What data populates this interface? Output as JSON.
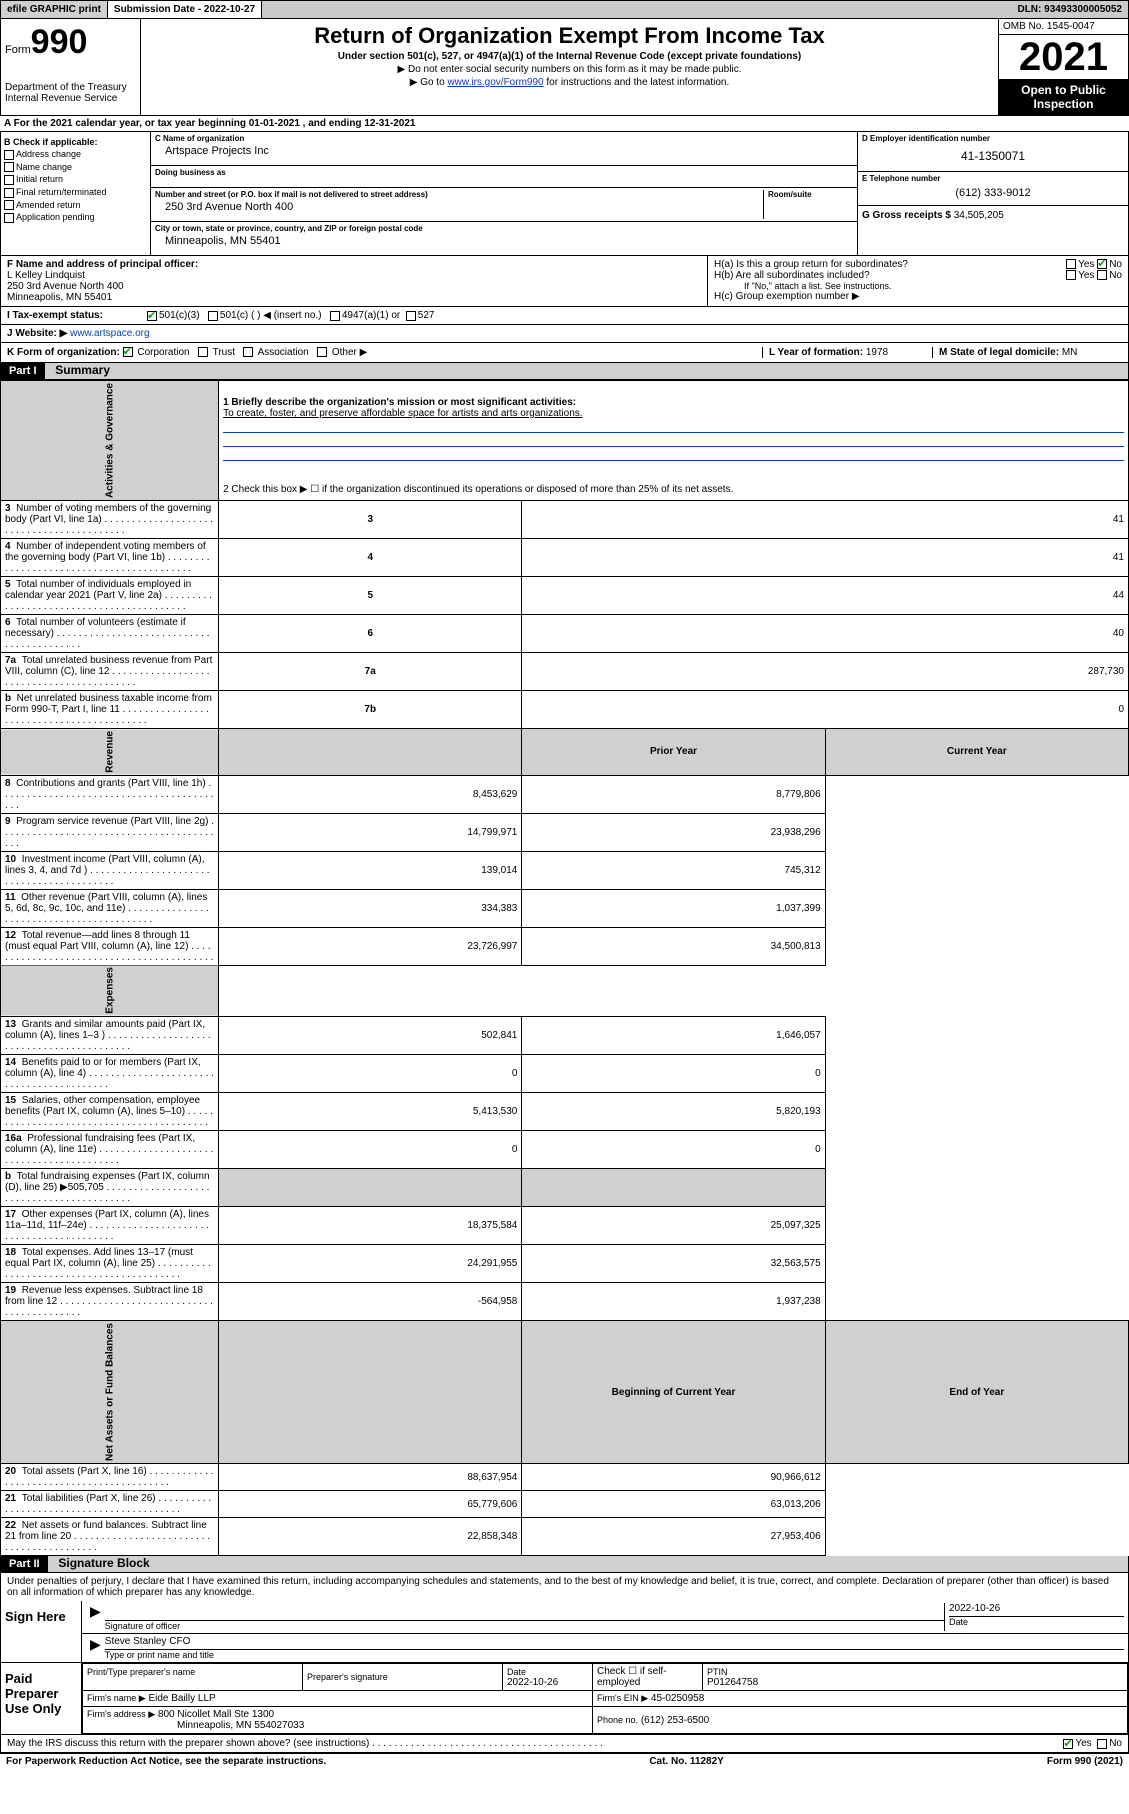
{
  "topbar": {
    "efile": "efile GRAPHIC print",
    "submission_label": "Submission Date - 2022-10-27",
    "dln": "DLN: 93493300005052"
  },
  "header": {
    "form_word": "Form",
    "form_num": "990",
    "dept1": "Department of the Treasury",
    "dept2": "Internal Revenue Service",
    "title": "Return of Organization Exempt From Income Tax",
    "sub": "Under section 501(c), 527, or 4947(a)(1) of the Internal Revenue Code (except private foundations)",
    "instr1": "▶ Do not enter social security numbers on this form as it may be made public.",
    "instr2_pre": "▶ Go to ",
    "instr2_link": "www.irs.gov/Form990",
    "instr2_post": " for instructions and the latest information.",
    "omb": "OMB No. 1545-0047",
    "year": "2021",
    "open": "Open to Public Inspection"
  },
  "A": {
    "text": "A For the 2021 calendar year, or tax year beginning 01-01-2021  , and ending 12-31-2021"
  },
  "B": {
    "label": "B Check if applicable:",
    "opts": [
      "Address change",
      "Name change",
      "Initial return",
      "Final return/terminated",
      "Amended return",
      "Application pending"
    ]
  },
  "C": {
    "name_label": "C Name of organization",
    "name": "Artspace Projects Inc",
    "dba_label": "Doing business as",
    "dba": "",
    "addr_label": "Number and street (or P.O. box if mail is not delivered to street address)",
    "room_label": "Room/suite",
    "addr": "250 3rd Avenue North 400",
    "city_label": "City or town, state or province, country, and ZIP or foreign postal code",
    "city": "Minneapolis, MN  55401"
  },
  "D": {
    "label": "D Employer identification number",
    "val": "41-1350071"
  },
  "E": {
    "label": "E Telephone number",
    "val": "(612) 333-9012"
  },
  "G": {
    "label": "G Gross receipts $",
    "val": "34,505,205"
  },
  "F": {
    "label": "F  Name and address of principal officer:",
    "name": "L Kelley Lindquist",
    "addr1": "250 3rd Avenue North 400",
    "addr2": "Minneapolis, MN  55401"
  },
  "H": {
    "a": "H(a)  Is this a group return for subordinates?",
    "a_yes": "Yes",
    "a_no": "No",
    "b": "H(b)  Are all subordinates included?",
    "b_yes": "Yes",
    "b_no": "No",
    "b_note": "If \"No,\" attach a list. See instructions.",
    "c": "H(c)  Group exemption number ▶"
  },
  "I": {
    "label": "I   Tax-exempt status:",
    "c3": "501(c)(3)",
    "c": "501(c) (   ) ◀ (insert no.)",
    "a4947": "4947(a)(1) or",
    "s527": "527"
  },
  "J": {
    "label": "J   Website: ▶",
    "val": "www.artspace.org"
  },
  "K": {
    "label": "K Form of organization:",
    "corp": "Corporation",
    "trust": "Trust",
    "assoc": "Association",
    "other": "Other ▶"
  },
  "L": {
    "label": "L Year of formation:",
    "val": "1978"
  },
  "M": {
    "label": "M State of legal domicile:",
    "val": "MN"
  },
  "partI": {
    "hdr": "Part I",
    "title": "Summary",
    "mission_label": "1   Briefly describe the organization's mission or most significant activities:",
    "mission": "To create, foster, and preserve affordable space for artists and arts organizations.",
    "line2": "2     Check this box ▶ ☐  if the organization discontinued its operations or disposed of more than 25% of its net assets.",
    "tabs": {
      "gov": "Activities & Governance",
      "rev": "Revenue",
      "exp": "Expenses",
      "net": "Net Assets or Fund Balances"
    },
    "col_prior": "Prior Year",
    "col_current": "Current Year",
    "col_begin": "Beginning of Current Year",
    "col_end": "End of Year",
    "gov_rows": [
      {
        "n": "3",
        "d": "Number of voting members of the governing body (Part VI, line 1a)",
        "box": "3",
        "v": "41"
      },
      {
        "n": "4",
        "d": "Number of independent voting members of the governing body (Part VI, line 1b)",
        "box": "4",
        "v": "41"
      },
      {
        "n": "5",
        "d": "Total number of individuals employed in calendar year 2021 (Part V, line 2a)",
        "box": "5",
        "v": "44"
      },
      {
        "n": "6",
        "d": "Total number of volunteers (estimate if necessary)",
        "box": "6",
        "v": "40"
      },
      {
        "n": "7a",
        "d": "Total unrelated business revenue from Part VIII, column (C), line 12",
        "box": "7a",
        "v": "287,730"
      },
      {
        "n": "b",
        "d": "Net unrelated business taxable income from Form 990-T, Part I, line 11",
        "box": "7b",
        "v": "0"
      }
    ],
    "rev_rows": [
      {
        "n": "8",
        "d": "Contributions and grants (Part VIII, line 1h)",
        "p": "8,453,629",
        "c": "8,779,806"
      },
      {
        "n": "9",
        "d": "Program service revenue (Part VIII, line 2g)",
        "p": "14,799,971",
        "c": "23,938,296"
      },
      {
        "n": "10",
        "d": "Investment income (Part VIII, column (A), lines 3, 4, and 7d )",
        "p": "139,014",
        "c": "745,312"
      },
      {
        "n": "11",
        "d": "Other revenue (Part VIII, column (A), lines 5, 6d, 8c, 9c, 10c, and 11e)",
        "p": "334,383",
        "c": "1,037,399"
      },
      {
        "n": "12",
        "d": "Total revenue—add lines 8 through 11 (must equal Part VIII, column (A), line 12)",
        "p": "23,726,997",
        "c": "34,500,813"
      }
    ],
    "exp_rows": [
      {
        "n": "13",
        "d": "Grants and similar amounts paid (Part IX, column (A), lines 1–3 )",
        "p": "502,841",
        "c": "1,646,057"
      },
      {
        "n": "14",
        "d": "Benefits paid to or for members (Part IX, column (A), line 4)",
        "p": "0",
        "c": "0"
      },
      {
        "n": "15",
        "d": "Salaries, other compensation, employee benefits (Part IX, column (A), lines 5–10)",
        "p": "5,413,530",
        "c": "5,820,193"
      },
      {
        "n": "16a",
        "d": "Professional fundraising fees (Part IX, column (A), line 11e)",
        "p": "0",
        "c": "0"
      },
      {
        "n": "b",
        "d": "Total fundraising expenses (Part IX, column (D), line 25) ▶505,705",
        "p": "",
        "c": "",
        "shaded": true
      },
      {
        "n": "17",
        "d": "Other expenses (Part IX, column (A), lines 11a–11d, 11f–24e)",
        "p": "18,375,584",
        "c": "25,097,325"
      },
      {
        "n": "18",
        "d": "Total expenses. Add lines 13–17 (must equal Part IX, column (A), line 25)",
        "p": "24,291,955",
        "c": "32,563,575"
      },
      {
        "n": "19",
        "d": "Revenue less expenses. Subtract line 18 from line 12",
        "p": "-564,958",
        "c": "1,937,238"
      }
    ],
    "net_rows": [
      {
        "n": "20",
        "d": "Total assets (Part X, line 16)",
        "p": "88,637,954",
        "c": "90,966,612"
      },
      {
        "n": "21",
        "d": "Total liabilities (Part X, line 26)",
        "p": "65,779,606",
        "c": "63,013,206"
      },
      {
        "n": "22",
        "d": "Net assets or fund balances. Subtract line 21 from line 20",
        "p": "22,858,348",
        "c": "27,953,406"
      }
    ]
  },
  "partII": {
    "hdr": "Part II",
    "title": "Signature Block",
    "decl": "Under penalties of perjury, I declare that I have examined this return, including accompanying schedules and statements, and to the best of my knowledge and belief, it is true, correct, and complete. Declaration of preparer (other than officer) is based on all information of which preparer has any knowledge.",
    "sign_here": "Sign Here",
    "sig_officer": "Signature of officer",
    "sig_date": "2022-10-26",
    "date_label": "Date",
    "officer_name": "Steve Stanley  CFO",
    "type_label": "Type or print name and title",
    "paid": "Paid Preparer Use Only",
    "prep_name_label": "Print/Type preparer's name",
    "prep_sig_label": "Preparer's signature",
    "prep_date": "2022-10-26",
    "prep_check": "Check ☐ if self-employed",
    "ptin_label": "PTIN",
    "ptin": "P01264758",
    "firm_name_label": "Firm's name    ▶",
    "firm_name": "Eide Bailly LLP",
    "firm_ein_label": "Firm's EIN ▶",
    "firm_ein": "45-0250958",
    "firm_addr_label": "Firm's address ▶",
    "firm_addr1": "800 Nicollet Mall Ste 1300",
    "firm_addr2": "Minneapolis, MN  554027033",
    "firm_phone_label": "Phone no.",
    "firm_phone": "(612) 253-6500",
    "discuss": "May the IRS discuss this return with the preparer shown above? (see instructions)",
    "discuss_yes": "Yes",
    "discuss_no": "No"
  },
  "footer": {
    "left": "For Paperwork Reduction Act Notice, see the separate instructions.",
    "mid": "Cat. No. 11282Y",
    "right": "Form 990 (2021)"
  },
  "colors": {
    "link": "#0645ad",
    "shaded": "#d0d0d0",
    "check": "#0a8a0a"
  }
}
